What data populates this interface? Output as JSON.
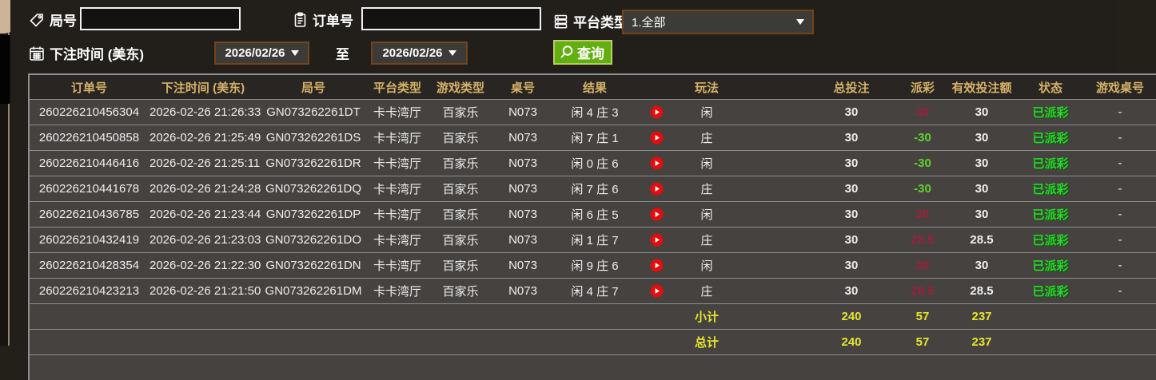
{
  "filters": {
    "round_label": "局号",
    "order_label": "订单号",
    "platform_label": "平台类型",
    "platform_value": "1.全部",
    "bet_time_label": "下注时间 (美东)",
    "to_label": "至",
    "date_from": "2026/02/26",
    "date_to": "2026/02/26",
    "search_label": "查询"
  },
  "table": {
    "headers": [
      "订单号",
      "下注时间 (美东)",
      "局号",
      "平台类型",
      "游戏类型",
      "桌号",
      "结果",
      "",
      "玩法",
      "",
      "总投注",
      "派彩",
      "有效投注额",
      "状态",
      "游戏桌号"
    ],
    "rows": [
      {
        "order": "260226210456304",
        "time": "2026-02-26 21:26:33",
        "round": "GN073262261DT",
        "platform": "卡卡湾厅",
        "game": "百家乐",
        "table_no": "N073",
        "result": "闲 4 庄 3",
        "play": "闲",
        "stake": "30",
        "payout": "30",
        "payout_sign": "pos",
        "valid": "30",
        "status": "已派彩",
        "extra": "-"
      },
      {
        "order": "260226210450858",
        "time": "2026-02-26 21:25:49",
        "round": "GN073262261DS",
        "platform": "卡卡湾厅",
        "game": "百家乐",
        "table_no": "N073",
        "result": "闲 7 庄 1",
        "play": "庄",
        "stake": "30",
        "payout": "-30",
        "payout_sign": "neg",
        "valid": "30",
        "status": "已派彩",
        "extra": "-"
      },
      {
        "order": "260226210446416",
        "time": "2026-02-26 21:25:11",
        "round": "GN073262261DR",
        "platform": "卡卡湾厅",
        "game": "百家乐",
        "table_no": "N073",
        "result": "闲 0 庄 6",
        "play": "闲",
        "stake": "30",
        "payout": "-30",
        "payout_sign": "neg",
        "valid": "30",
        "status": "已派彩",
        "extra": "-"
      },
      {
        "order": "260226210441678",
        "time": "2026-02-26 21:24:28",
        "round": "GN073262261DQ",
        "platform": "卡卡湾厅",
        "game": "百家乐",
        "table_no": "N073",
        "result": "闲 7 庄 6",
        "play": "庄",
        "stake": "30",
        "payout": "-30",
        "payout_sign": "neg",
        "valid": "30",
        "status": "已派彩",
        "extra": "-"
      },
      {
        "order": "260226210436785",
        "time": "2026-02-26 21:23:44",
        "round": "GN073262261DP",
        "platform": "卡卡湾厅",
        "game": "百家乐",
        "table_no": "N073",
        "result": "闲 6 庄 5",
        "play": "闲",
        "stake": "30",
        "payout": "30",
        "payout_sign": "pos",
        "valid": "30",
        "status": "已派彩",
        "extra": "-"
      },
      {
        "order": "260226210432419",
        "time": "2026-02-26 21:23:03",
        "round": "GN073262261DO",
        "platform": "卡卡湾厅",
        "game": "百家乐",
        "table_no": "N073",
        "result": "闲 1 庄 7",
        "play": "庄",
        "stake": "30",
        "payout": "28.5",
        "payout_sign": "pos",
        "valid": "28.5",
        "status": "已派彩",
        "extra": "-"
      },
      {
        "order": "260226210428354",
        "time": "2026-02-26 21:22:30",
        "round": "GN073262261DN",
        "platform": "卡卡湾厅",
        "game": "百家乐",
        "table_no": "N073",
        "result": "闲 9 庄 6",
        "play": "闲",
        "stake": "30",
        "payout": "30",
        "payout_sign": "pos",
        "valid": "30",
        "status": "已派彩",
        "extra": "-"
      },
      {
        "order": "260226210423213",
        "time": "2026-02-26 21:21:50",
        "round": "GN073262261DM",
        "platform": "卡卡湾厅",
        "game": "百家乐",
        "table_no": "N073",
        "result": "闲 4 庄 7",
        "play": "庄",
        "stake": "30",
        "payout": "28.5",
        "payout_sign": "pos",
        "valid": "28.5",
        "status": "已派彩",
        "extra": "-"
      }
    ],
    "subtotal": {
      "label": "小计",
      "stake": "240",
      "payout": "57",
      "valid": "237"
    },
    "total": {
      "label": "总计",
      "stake": "240",
      "payout": "57",
      "valid": "237"
    }
  },
  "colors": {
    "accent_gold": "#d7b269",
    "win_red": "#9e2038",
    "loss_green": "#5cd42c",
    "status_green": "#2fd330",
    "summary_yellow": "#e6e62e",
    "button_green": "#63ae10",
    "select_border_brown": "#74431b"
  }
}
